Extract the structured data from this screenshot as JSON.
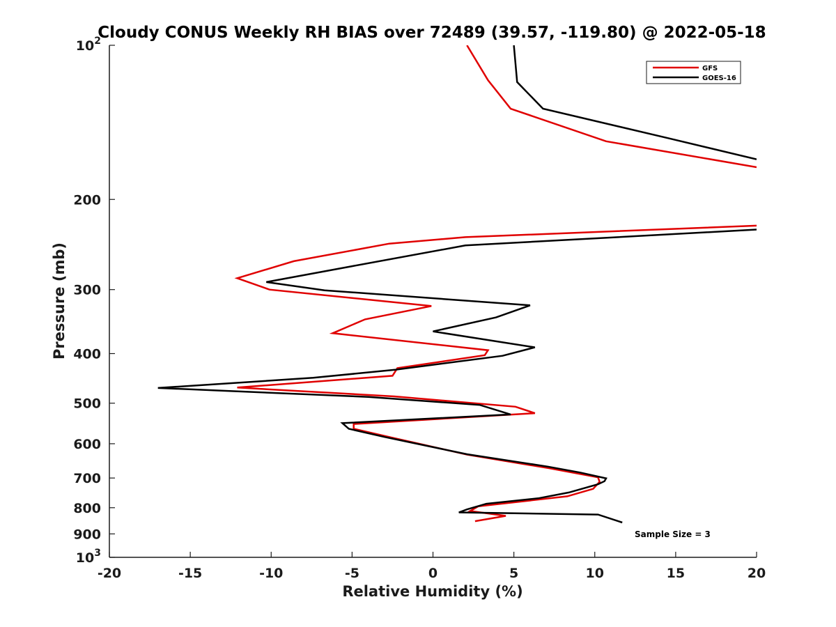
{
  "chart_data": {
    "type": "line",
    "title": "Cloudy CONUS Weekly RH BIAS over 72489 (39.57, -119.80) @ 2022-05-18",
    "xlabel": "Relative Humidity (%)",
    "ylabel": "Pressure (mb)",
    "xlim": [
      -20,
      20
    ],
    "ylim": [
      100,
      1000
    ],
    "y_scale": "log",
    "y_reversed": true,
    "grid": false,
    "legend_position": "top-right",
    "x_ticks": [
      "-20",
      "-15",
      "-10",
      "-5",
      "0",
      "5",
      "10",
      "15",
      "20"
    ],
    "x_tick_values": [
      -20,
      -15,
      -10,
      -5,
      0,
      5,
      10,
      15,
      20
    ],
    "y_ticks": [
      {
        "value": 100,
        "base": "10",
        "exp": "2"
      },
      {
        "value": 200,
        "label": "200"
      },
      {
        "value": 300,
        "label": "300"
      },
      {
        "value": 400,
        "label": "400"
      },
      {
        "value": 500,
        "label": "500"
      },
      {
        "value": 600,
        "label": "600"
      },
      {
        "value": 700,
        "label": "700"
      },
      {
        "value": 800,
        "label": "800"
      },
      {
        "value": 900,
        "label": "900"
      },
      {
        "value": 1000,
        "base": "10",
        "exp": "3"
      }
    ],
    "annotation": "Sample Size = 3",
    "series": [
      {
        "name": "GFS",
        "color": "#e00000",
        "points": [
          [
            2.1,
            100
          ],
          [
            3.4,
            117
          ],
          [
            4.8,
            133
          ],
          [
            10.7,
            154
          ],
          [
            20,
            173
          ],
          [
            null,
            null
          ],
          [
            20,
            225
          ],
          [
            2,
            237
          ],
          [
            -2.7,
            244
          ],
          [
            -8.6,
            264
          ],
          [
            -12.1,
            285
          ],
          [
            -10.1,
            300
          ],
          [
            -0.1,
            323
          ],
          [
            -4.2,
            343
          ],
          [
            -6.2,
            365
          ],
          [
            3.4,
            394
          ],
          [
            3.2,
            403
          ],
          [
            -2.2,
            427
          ],
          [
            -2.5,
            442
          ],
          [
            -12.1,
            466
          ],
          [
            -2.4,
            485
          ],
          [
            5.1,
            508
          ],
          [
            6.3,
            523
          ],
          [
            -4.9,
            549
          ],
          [
            -4.9,
            561
          ],
          [
            -2.6,
            583
          ],
          [
            2.1,
            630
          ],
          [
            7.2,
            670
          ],
          [
            10.2,
            698
          ],
          [
            10.3,
            712
          ],
          [
            9.9,
            735
          ],
          [
            8.3,
            760
          ],
          [
            2.8,
            795
          ],
          [
            2.3,
            812
          ],
          [
            4.5,
            830
          ],
          [
            2.6,
            850
          ]
        ]
      },
      {
        "name": "GOES-16",
        "color": "#000000",
        "points": [
          [
            5,
            100
          ],
          [
            5.2,
            118
          ],
          [
            6.8,
            133
          ],
          [
            14.6,
            152
          ],
          [
            20,
            167
          ],
          [
            null,
            null
          ],
          [
            20,
            229
          ],
          [
            2,
            246
          ],
          [
            -5,
            270
          ],
          [
            -10.3,
            290
          ],
          [
            -6.7,
            301
          ],
          [
            6,
            322
          ],
          [
            3.9,
            340
          ],
          [
            0,
            362
          ],
          [
            6.3,
            389
          ],
          [
            4.3,
            404
          ],
          [
            -2.3,
            430
          ],
          [
            -7.4,
            446
          ],
          [
            -17,
            467
          ],
          [
            -4,
            486
          ],
          [
            2.9,
            504
          ],
          [
            4.8,
            526
          ],
          [
            -5.6,
            547
          ],
          [
            -5.2,
            561
          ],
          [
            -3,
            582
          ],
          [
            2.1,
            629
          ],
          [
            7.1,
            665
          ],
          [
            9.1,
            683
          ],
          [
            10.7,
            701
          ],
          [
            10.6,
            710
          ],
          [
            10.2,
            720
          ],
          [
            8.4,
            747
          ],
          [
            6.5,
            767
          ],
          [
            3.3,
            786
          ],
          [
            2.1,
            806
          ],
          [
            1.6,
            817
          ],
          [
            10.2,
            825
          ],
          [
            11.7,
            855
          ]
        ]
      }
    ]
  }
}
